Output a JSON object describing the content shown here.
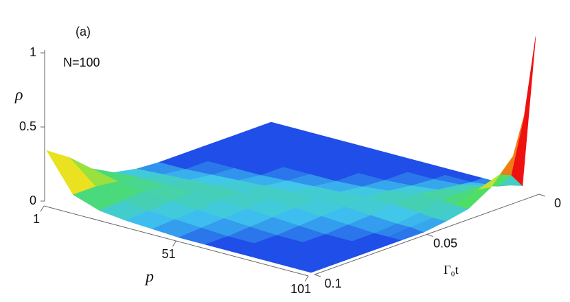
{
  "chart_data": {
    "type": "surface",
    "panel_label": "(a)",
    "annotation": "N=100",
    "xlabel": "p",
    "ylabel": "Γ₀t",
    "zlabel": "ρ",
    "x": [
      1,
      11,
      21,
      31,
      41,
      51,
      61,
      71,
      81,
      91,
      96,
      101
    ],
    "y": [
      0,
      0.005,
      0.01,
      0.02,
      0.03,
      0.04,
      0.05,
      0.06,
      0.07,
      0.08,
      0.09,
      0.1
    ],
    "z": [
      [
        0,
        0,
        0,
        0,
        0,
        0,
        0,
        0,
        0,
        0,
        0.02,
        1.05
      ],
      [
        0,
        0,
        0,
        0,
        0,
        0,
        0,
        0,
        0,
        0.02,
        0.12,
        0.55
      ],
      [
        0,
        0,
        0,
        0,
        0,
        0,
        0,
        0,
        0.01,
        0.05,
        0.15,
        0.3
      ],
      [
        0,
        0,
        0,
        0,
        0,
        0,
        0,
        0.01,
        0.03,
        0.07,
        0.1,
        0.14
      ],
      [
        0,
        0,
        0,
        0,
        0,
        0,
        0.01,
        0.03,
        0.05,
        0.06,
        0.05,
        0.05
      ],
      [
        0,
        0,
        0,
        0,
        0.01,
        0.02,
        0.03,
        0.04,
        0.04,
        0.03,
        0.02,
        0.02
      ],
      [
        0,
        0,
        0.01,
        0.02,
        0.03,
        0.04,
        0.04,
        0.03,
        0.02,
        0.01,
        0.01,
        0
      ],
      [
        0.01,
        0.02,
        0.03,
        0.04,
        0.04,
        0.04,
        0.03,
        0.02,
        0.01,
        0,
        0,
        0
      ],
      [
        0.04,
        0.05,
        0.05,
        0.05,
        0.04,
        0.03,
        0.02,
        0.01,
        0,
        0,
        0,
        0
      ],
      [
        0.12,
        0.08,
        0.06,
        0.04,
        0.03,
        0.02,
        0.01,
        0,
        0,
        0,
        0,
        0
      ],
      [
        0.25,
        0.1,
        0.05,
        0.03,
        0.02,
        0.01,
        0,
        0,
        0,
        0,
        0,
        0
      ],
      [
        0.35,
        0.1,
        0.04,
        0.02,
        0.01,
        0,
        0,
        0,
        0,
        0,
        0,
        0
      ]
    ],
    "xlim": [
      1,
      101
    ],
    "xticks": [
      1,
      51,
      101
    ],
    "ylim": [
      0,
      0.1
    ],
    "yticks": [
      0,
      0.05,
      0.1
    ],
    "zlim": [
      0,
      1
    ],
    "zticks": [
      0,
      0.5,
      1
    ],
    "colorscale": [
      "#1f4ee8",
      "#3fc6ef",
      "#4fe05a",
      "#f2e21e",
      "#f01010"
    ]
  }
}
